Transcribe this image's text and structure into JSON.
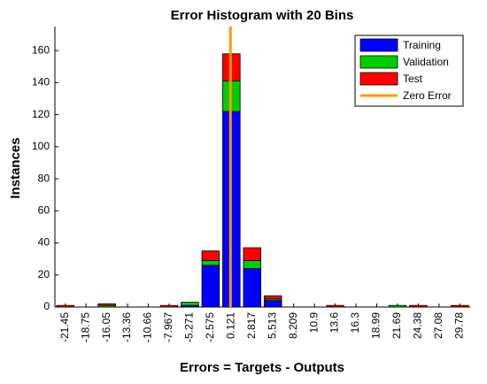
{
  "chart_data": {
    "type": "bar",
    "stacked": true,
    "title": "Error Histogram with 20 Bins",
    "x_label": "Errors = Targets - Outputs",
    "y_label": "Instances",
    "categories": [
      "-21.45",
      "-18.75",
      "-16.05",
      "-13.36",
      "-10.66",
      "-7.967",
      "-5.271",
      "-2.575",
      "0.121",
      "2.817",
      "5.513",
      "8.209",
      "10.9",
      "13.6",
      "16.3",
      "18.99",
      "21.69",
      "24.38",
      "27.08",
      "29.78"
    ],
    "series": [
      {
        "name": "Training",
        "color": "#0000ff",
        "values": [
          0,
          0,
          0,
          0,
          0,
          0,
          1,
          26,
          122,
          24,
          4,
          0,
          0,
          0,
          0,
          0,
          0,
          0,
          0,
          0
        ]
      },
      {
        "name": "Validation",
        "color": "#00cc00",
        "values": [
          0,
          0,
          1,
          0,
          0,
          0,
          2,
          3,
          19,
          5,
          1,
          0,
          0,
          0,
          0,
          0,
          1,
          0,
          0,
          0
        ]
      },
      {
        "name": "Test",
        "color": "#ff0000",
        "values": [
          1,
          0,
          1,
          0,
          0,
          1,
          0,
          6,
          17,
          8,
          2,
          0,
          0,
          1,
          0,
          0,
          0,
          1,
          0,
          1
        ]
      }
    ],
    "reference_line": {
      "name": "Zero Error",
      "value": 0,
      "color": "#ff9900"
    },
    "ylim": [
      0,
      175
    ],
    "yticks": [
      0,
      20,
      40,
      60,
      80,
      100,
      120,
      140,
      160
    ],
    "grid": false,
    "legend_position": "upper-right"
  }
}
